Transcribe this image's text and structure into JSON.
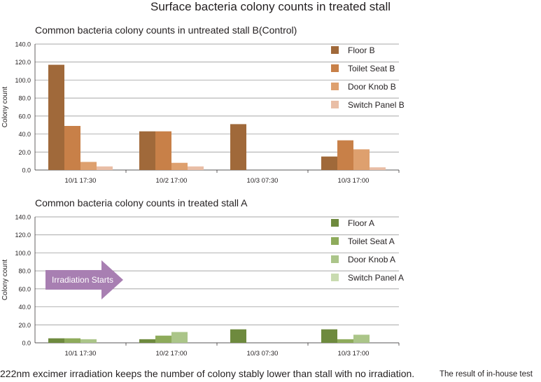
{
  "title": "Surface bacteria colony counts in treated stall",
  "footer": {
    "main": "222nm excimer irradiation keeps the number of colony stably lower than stall with no irradiation.",
    "note": "The result of in-house test"
  },
  "annotation": {
    "arrow_label": "Irradiation Starts",
    "arrow_color": "#a87fb2"
  },
  "chart_data": [
    {
      "type": "bar",
      "title": "Common bacteria colony counts in untreated stall B(Control)",
      "ylabel": "Colony count",
      "xlabel": "",
      "ylim": [
        0,
        140
      ],
      "yticks": [
        "0.0",
        "20.0",
        "40.0",
        "60.0",
        "80.0",
        "100.0",
        "120.0",
        "140.0"
      ],
      "grid": true,
      "legend_position": "right",
      "categories": [
        "10/1  17:30",
        "10/2  17:00",
        "10/3  07:30",
        "10/3  17:00"
      ],
      "series": [
        {
          "name": "Floor B",
          "color": "#a0693a",
          "values": [
            117,
            43,
            51,
            15
          ]
        },
        {
          "name": "Toilet Seat B",
          "color": "#c88048",
          "values": [
            49,
            43,
            0,
            33
          ]
        },
        {
          "name": "Door Knob B",
          "color": "#dea06e",
          "values": [
            9,
            8,
            0,
            23
          ]
        },
        {
          "name": "Switch Panel B",
          "color": "#e9bea6",
          "values": [
            4,
            4,
            0,
            3
          ]
        }
      ]
    },
    {
      "type": "bar",
      "title": "Common bacteria colony counts in treated stall A",
      "ylabel": "Colony count",
      "xlabel": "",
      "ylim": [
        0,
        140
      ],
      "yticks": [
        "0.0",
        "20.0",
        "40.0",
        "60.0",
        "80.0",
        "100.0",
        "120.0",
        "140.0"
      ],
      "grid": true,
      "legend_position": "right",
      "categories": [
        "10/1  17:30",
        "10/2  17:00",
        "10/3  07:30",
        "10/3  17:00"
      ],
      "series": [
        {
          "name": "Floor A",
          "color": "#6e8a3e",
          "values": [
            5,
            4,
            15,
            15
          ]
        },
        {
          "name": "Toilet Seat A",
          "color": "#8eab5b",
          "values": [
            5,
            8,
            0,
            4
          ]
        },
        {
          "name": "Door Knob A",
          "color": "#abc589",
          "values": [
            4,
            12,
            0,
            9
          ]
        },
        {
          "name": "Switch Panel A",
          "color": "#c9dbb0",
          "values": [
            0,
            0,
            0,
            0
          ]
        }
      ]
    }
  ]
}
